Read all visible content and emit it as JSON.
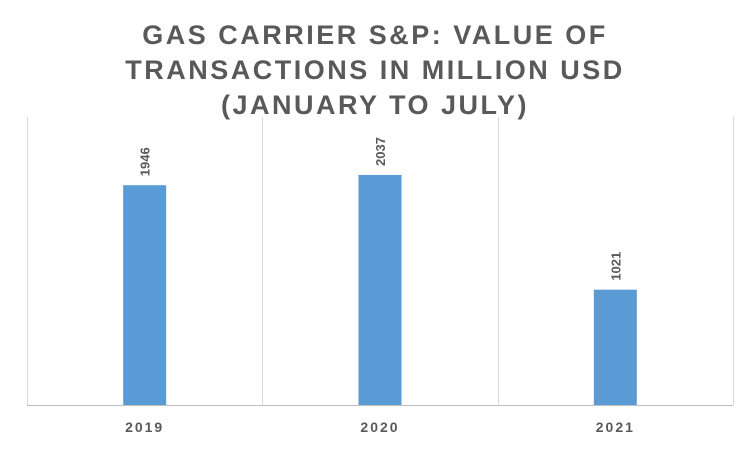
{
  "chart_data": {
    "type": "bar",
    "title_lines": [
      "GAS CARRIER S&P: VALUE OF",
      "TRANSACTIONS IN MILLION USD",
      "(JANUARY TO JULY)"
    ],
    "categories": [
      "2019",
      "2020",
      "2021"
    ],
    "values": [
      1946,
      2037,
      1021
    ],
    "data_labels": [
      "1946",
      "2037",
      "1021"
    ],
    "ylim": [
      0,
      2550
    ],
    "grid": "vertical category separators",
    "legend": "none",
    "bar_color": "#5B9BD5"
  }
}
